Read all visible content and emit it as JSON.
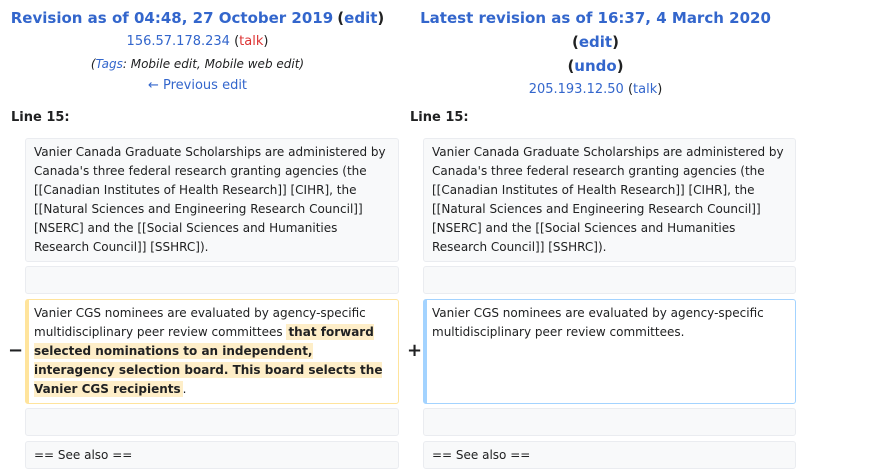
{
  "left": {
    "title_prefix": "Revision as of 04:48, 27 October 2019",
    "edit_label": "edit",
    "user": "156.57.178.234",
    "talk": "talk",
    "tags_label": "Tags",
    "tags_value": "Mobile edit, Mobile web edit",
    "prev_edit": "← Previous edit",
    "line_label": "Line 15:",
    "para1": "Vanier Canada Graduate Scholarships are administered by Canada's three federal research granting agencies (the [[Canadian Institutes of Health Research]] [CIHR], the [[Natural Sciences and Engineering Research Council]] [NSERC] and the [[Social Sciences and Humanities Research Council]] [SSHRC]).",
    "changed_plain": "Vanier CGS nominees are evaluated by agency-specific multidisciplinary peer review committees",
    "changed_removed": "that forward selected nominations to an independent, interagency selection board. This board selects the Vanier CGS recipients",
    "changed_tail": ".",
    "see_also": "== See also ==",
    "marker": "−"
  },
  "right": {
    "title_prefix": "Latest revision as of 16:37, 4 March 2020",
    "edit_label": "edit",
    "undo_label": "undo",
    "user": "205.193.12.50",
    "talk": "talk",
    "line_label": "Line 15:",
    "para1": "Vanier Canada Graduate Scholarships are administered by Canada's three federal research granting agencies (the [[Canadian Institutes of Health Research]] [CIHR], the [[Natural Sciences and Engineering Research Council]] [NSERC] and the [[Social Sciences and Humanities Research Council]] [SSHRC]).",
    "changed": "Vanier CGS nominees are evaluated by agency-specific multidisciplinary peer review committees.",
    "see_also": "== See also ==",
    "marker": "+"
  },
  "colors": {
    "link": "#3366cc",
    "talk_red": "#dd3333",
    "removed_border": "#ffe49c",
    "removed_highlight": "#feeec8",
    "added_border": "#a3d3ff",
    "context_bg": "#f8f9fa"
  }
}
